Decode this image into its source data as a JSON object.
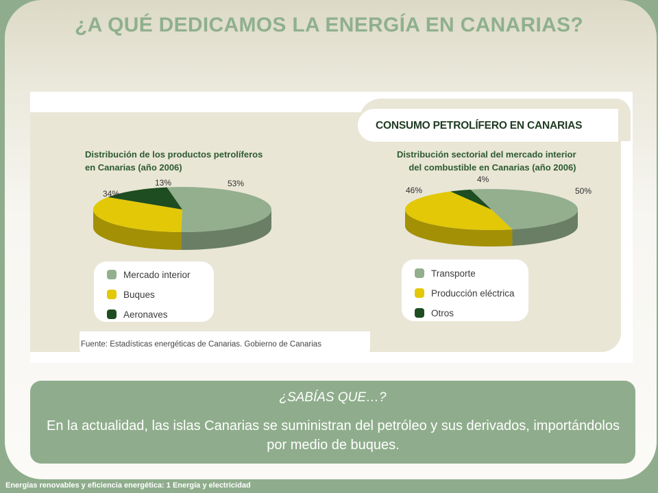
{
  "title": "¿A QUÉ DEDICAMOS LA ENERGÍA EN CANARIAS?",
  "infographic": {
    "heading": "CONSUMO PETROLÍFERO EN CANARIAS",
    "source": "Fuente: Estadísticas energéticas de Canarias. Gobierno de Canarias"
  },
  "colors": {
    "green_light": "#93af8e",
    "yellow": "#e2c807",
    "dark_green": "#1d4d20"
  },
  "chart_data": [
    {
      "type": "pie",
      "title_line1": "Distribución de los productos petrolíferos",
      "title_line2": "en Canarias (año 2006)",
      "categories": [
        "Mercado interior",
        "Buques",
        "Aeronaves"
      ],
      "values": [
        53,
        34,
        13
      ],
      "labels": [
        "53%",
        "34%",
        "13%"
      ],
      "colors": [
        "#93af8e",
        "#e2c807",
        "#1d4d20"
      ]
    },
    {
      "type": "pie",
      "title_line1": "Distribución sectorial del mercado interior",
      "title_line2": "del combustible en Canarias (año 2006)",
      "categories": [
        "Transporte",
        "Producción eléctrica",
        "Otros"
      ],
      "values": [
        50,
        46,
        4
      ],
      "labels": [
        "50%",
        "46%",
        "4%"
      ],
      "colors": [
        "#93af8e",
        "#e2c807",
        "#1d4d20"
      ]
    }
  ],
  "sabias": {
    "heading": "¿SABÍAS QUE…?",
    "text": "En la actualidad, las islas Canarias se suministran del petróleo y sus derivados, importándolos por medio de buques."
  },
  "footer": "Energías renovables y eficiencia energética: 1 Energía y electricidad"
}
